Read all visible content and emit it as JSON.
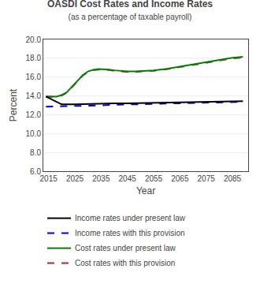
{
  "chart_data": {
    "type": "line",
    "title": "OASDI Cost Rates and Income Rates",
    "subtitle": "(as a percentage of taxable payroll)",
    "xlabel": "Year",
    "ylabel": "Percent",
    "xlim": [
      2013,
      2091
    ],
    "ylim": [
      6.0,
      20.0
    ],
    "xticks": [
      2015,
      2025,
      2035,
      2045,
      2055,
      2065,
      2075,
      2085
    ],
    "yticks": [
      {
        "value": 6.0,
        "label": "6.0"
      },
      {
        "value": 8.0,
        "label": "8.0"
      },
      {
        "value": 10.0,
        "label": "10.0"
      },
      {
        "value": 12.0,
        "label": "12.0"
      },
      {
        "value": 14.0,
        "label": "14.0"
      },
      {
        "value": 16.0,
        "label": "16.0"
      },
      {
        "value": 18.0,
        "label": "18.0"
      },
      {
        "value": 20.0,
        "label": "20.0"
      }
    ],
    "grid": true,
    "legend": "bottom",
    "series": [
      {
        "name": "Cost rates with this provision",
        "color": "#993333",
        "line_style": "dashed",
        "x": [
          2014,
          2016,
          2018,
          2020,
          2022,
          2024,
          2026,
          2028,
          2030,
          2032,
          2034,
          2036,
          2038,
          2040,
          2042,
          2045,
          2048,
          2050,
          2055,
          2060,
          2065,
          2070,
          2075,
          2080,
          2085,
          2089
        ],
        "values": [
          13.9,
          13.88,
          13.9,
          14.05,
          14.35,
          14.95,
          15.55,
          16.15,
          16.55,
          16.73,
          16.8,
          16.8,
          16.75,
          16.67,
          16.6,
          16.55,
          16.55,
          16.57,
          16.67,
          16.83,
          17.05,
          17.3,
          17.55,
          17.77,
          17.98,
          18.08
        ]
      },
      {
        "name": "Cost rates under present law",
        "color": "#008000",
        "line_style": "solid",
        "x": [
          2014,
          2016,
          2018,
          2020,
          2022,
          2024,
          2026,
          2028,
          2030,
          2032,
          2034,
          2036,
          2038,
          2040,
          2042,
          2045,
          2048,
          2050,
          2055,
          2060,
          2065,
          2070,
          2075,
          2080,
          2085,
          2089
        ],
        "values": [
          13.95,
          13.92,
          13.93,
          14.1,
          14.4,
          15.0,
          15.6,
          16.2,
          16.6,
          16.78,
          16.85,
          16.85,
          16.8,
          16.72,
          16.65,
          16.6,
          16.6,
          16.62,
          16.72,
          16.88,
          17.1,
          17.35,
          17.6,
          17.82,
          18.05,
          18.15
        ]
      },
      {
        "name": "Income rates with this provision",
        "color": "#0000cc",
        "line_style": "dashed",
        "x": [
          2014,
          2020,
          2025,
          2030,
          2035,
          2040,
          2045,
          2050,
          2055,
          2060,
          2065,
          2070,
          2075,
          2080,
          2085,
          2089
        ],
        "values": [
          12.85,
          12.88,
          12.9,
          12.95,
          13.0,
          13.05,
          13.1,
          13.13,
          13.16,
          13.19,
          13.22,
          13.25,
          13.28,
          13.3,
          13.33,
          13.36
        ]
      },
      {
        "name": "Income rates under present law",
        "color": "#000000",
        "line_style": "solid",
        "x": [
          2014,
          2020,
          2025,
          2030,
          2035,
          2040,
          2045,
          2050,
          2055,
          2060,
          2065,
          2070,
          2075,
          2080,
          2085,
          2089
        ],
        "values": [
          13.93,
          13.1,
          13.1,
          13.15,
          13.17,
          13.2,
          13.22,
          13.25,
          13.28,
          13.3,
          13.32,
          13.35,
          13.37,
          13.4,
          13.42,
          13.45
        ]
      }
    ]
  }
}
